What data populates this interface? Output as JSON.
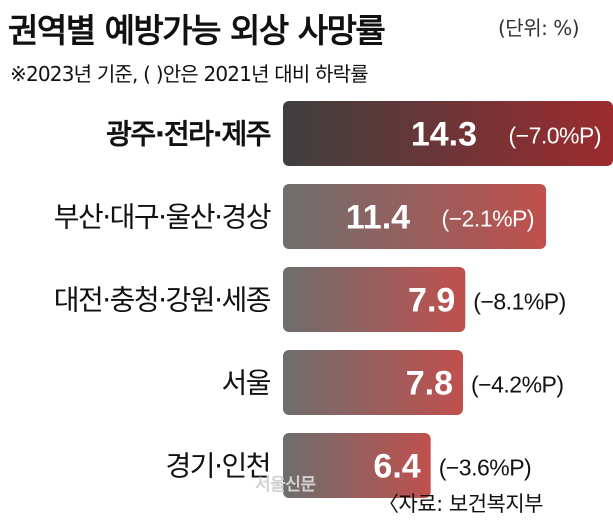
{
  "title": "권역별 예방가능 외상 사망률",
  "unit": "(단위: %)",
  "subtitle": "※2023년 기준, (  )안은 2021년 대비 하락률",
  "watermark": "서울신문",
  "source": "〈자료: 보건복지부",
  "colors": {
    "bar_gradient_start": "#6e6e6e",
    "bar_gradient_end": "#c0504d",
    "highlight_gradient_start": "#3f3f3f",
    "highlight_gradient_end": "#9c2b2e",
    "text_dark": "#111111",
    "text_light": "#ffffff"
  },
  "chart_data": {
    "type": "bar",
    "orientation": "horizontal",
    "categories": [
      "광주·전라·제주",
      "부산·대구·울산·경상",
      "대전·충청·강원·세종",
      "서울",
      "경기·인천"
    ],
    "values": [
      14.3,
      11.4,
      7.9,
      7.8,
      6.4
    ],
    "value_labels": [
      "14.3",
      "11.4",
      "7.9",
      "7.8",
      "6.4"
    ],
    "change_labels": [
      "(−7.0%P)",
      "(−2.1%P)",
      "(−8.1%P)",
      "(−4.2%P)",
      "(−3.6%P)"
    ],
    "changes": [
      -7.0,
      -2.1,
      -8.1,
      -4.2,
      -3.6
    ],
    "highlight": [
      true,
      false,
      false,
      false,
      false
    ],
    "xlim": [
      0,
      14.3
    ]
  }
}
